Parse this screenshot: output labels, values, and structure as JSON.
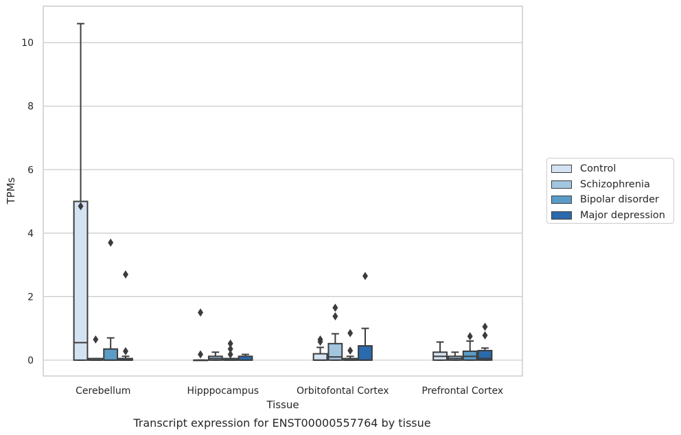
{
  "chart_data": {
    "type": "box",
    "caption": "Transcript expression for ENST00000557764 by tissue",
    "xlabel": "Tissue",
    "ylabel": "TPMs",
    "ylim": [
      -0.5,
      11.15
    ],
    "yticks": [
      0,
      2,
      4,
      6,
      8,
      10
    ],
    "categories": [
      "Cerebellum",
      "Hipppocampus",
      "Orbitofontal Cortex",
      "Prefrontal Cortex"
    ],
    "grid": "horizontal",
    "legend_position": "right",
    "series": [
      {
        "name": "Control",
        "color": "#d4e3f2",
        "boxes": [
          {
            "q1": 0.0,
            "median": 0.55,
            "q3": 5.0,
            "whislo": 0.0,
            "whishi": 10.6,
            "fliers": [
              4.85
            ]
          },
          {
            "q1": 0.0,
            "median": 0.0,
            "q3": 0.0,
            "whislo": 0.0,
            "whishi": 0.0,
            "fliers": [
              1.5,
              0.18
            ]
          },
          {
            "q1": 0.0,
            "median": 0.0,
            "q3": 0.2,
            "whislo": 0.0,
            "whishi": 0.4,
            "fliers": [
              0.65,
              0.58
            ]
          },
          {
            "q1": 0.0,
            "median": 0.12,
            "q3": 0.25,
            "whislo": 0.0,
            "whishi": 0.57,
            "fliers": []
          }
        ]
      },
      {
        "name": "Schizophrenia",
        "color": "#a3c6e0",
        "boxes": [
          {
            "q1": 0.0,
            "median": 0.0,
            "q3": 0.05,
            "whislo": 0.0,
            "whishi": 0.05,
            "fliers": [
              0.65
            ]
          },
          {
            "q1": 0.0,
            "median": 0.05,
            "q3": 0.12,
            "whislo": 0.0,
            "whishi": 0.25,
            "fliers": []
          },
          {
            "q1": 0.0,
            "median": 0.1,
            "q3": 0.52,
            "whislo": 0.0,
            "whishi": 0.83,
            "fliers": [
              1.65,
              1.38
            ]
          },
          {
            "q1": 0.0,
            "median": 0.05,
            "q3": 0.12,
            "whislo": 0.0,
            "whishi": 0.25,
            "fliers": []
          }
        ]
      },
      {
        "name": "Bipolar disorder",
        "color": "#5b9bc8",
        "boxes": [
          {
            "q1": 0.0,
            "median": 0.0,
            "q3": 0.35,
            "whislo": 0.0,
            "whishi": 0.7,
            "fliers": [
              3.7
            ]
          },
          {
            "q1": 0.0,
            "median": 0.0,
            "q3": 0.05,
            "whislo": 0.0,
            "whishi": 0.05,
            "fliers": [
              0.52,
              0.35,
              0.18
            ]
          },
          {
            "q1": 0.0,
            "median": 0.0,
            "q3": 0.05,
            "whislo": 0.0,
            "whishi": 0.12,
            "fliers": [
              0.85,
              0.3
            ]
          },
          {
            "q1": 0.0,
            "median": 0.12,
            "q3": 0.28,
            "whislo": 0.0,
            "whishi": 0.6,
            "fliers": [
              0.75
            ]
          }
        ]
      },
      {
        "name": "Major depression",
        "color": "#2a6aad",
        "boxes": [
          {
            "q1": 0.0,
            "median": 0.0,
            "q3": 0.05,
            "whislo": 0.0,
            "whishi": 0.12,
            "fliers": [
              2.7,
              0.28
            ]
          },
          {
            "q1": 0.0,
            "median": 0.0,
            "q3": 0.12,
            "whislo": 0.0,
            "whishi": 0.18,
            "fliers": []
          },
          {
            "q1": 0.0,
            "median": 0.0,
            "q3": 0.45,
            "whislo": 0.0,
            "whishi": 1.0,
            "fliers": [
              2.65
            ]
          },
          {
            "q1": 0.0,
            "median": 0.05,
            "q3": 0.3,
            "whislo": 0.0,
            "whishi": 0.38,
            "fliers": [
              1.05,
              0.78
            ]
          }
        ]
      }
    ]
  }
}
